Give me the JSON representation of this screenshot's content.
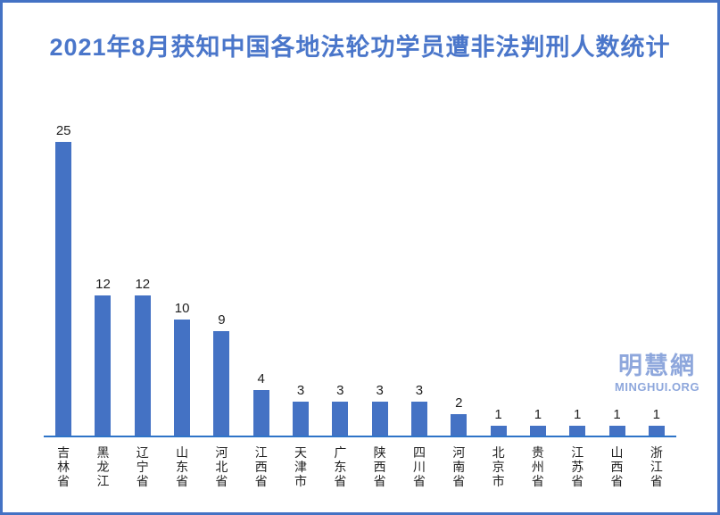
{
  "title": "2021年8月获知中国各地法轮功学员遭非法判刑人数统计",
  "watermark": {
    "cn": "明慧網",
    "en": "MINGHUI.ORG"
  },
  "colors": {
    "bar": "#4472c4",
    "axis_line": "#2e74c8",
    "title_text": "#4a76ca",
    "frame_border": "#4472c4",
    "value_label": "#1f1f1f",
    "category_label": "#1f1f1f",
    "watermark": "#8ea7dc"
  },
  "chart_data": {
    "type": "bar",
    "title": "2021年8月获知中国各地法轮功学员遭非法判刑人数统计",
    "categories": [
      "吉林省",
      "黑龙江",
      "辽宁省",
      "山东省",
      "河北省",
      "江西省",
      "天津市",
      "广东省",
      "陕西省",
      "四川省",
      "河南省",
      "北京市",
      "贵州省",
      "江苏省",
      "山西省",
      "浙江省"
    ],
    "values": [
      25,
      12,
      12,
      10,
      9,
      4,
      3,
      3,
      3,
      3,
      2,
      1,
      1,
      1,
      1,
      1
    ],
    "xlabel": "",
    "ylabel": "",
    "ylim": [
      0,
      25
    ],
    "grid": false,
    "legend": "none",
    "y_axis_visible": false,
    "data_labels": true,
    "category_label_orientation": "vertical"
  }
}
